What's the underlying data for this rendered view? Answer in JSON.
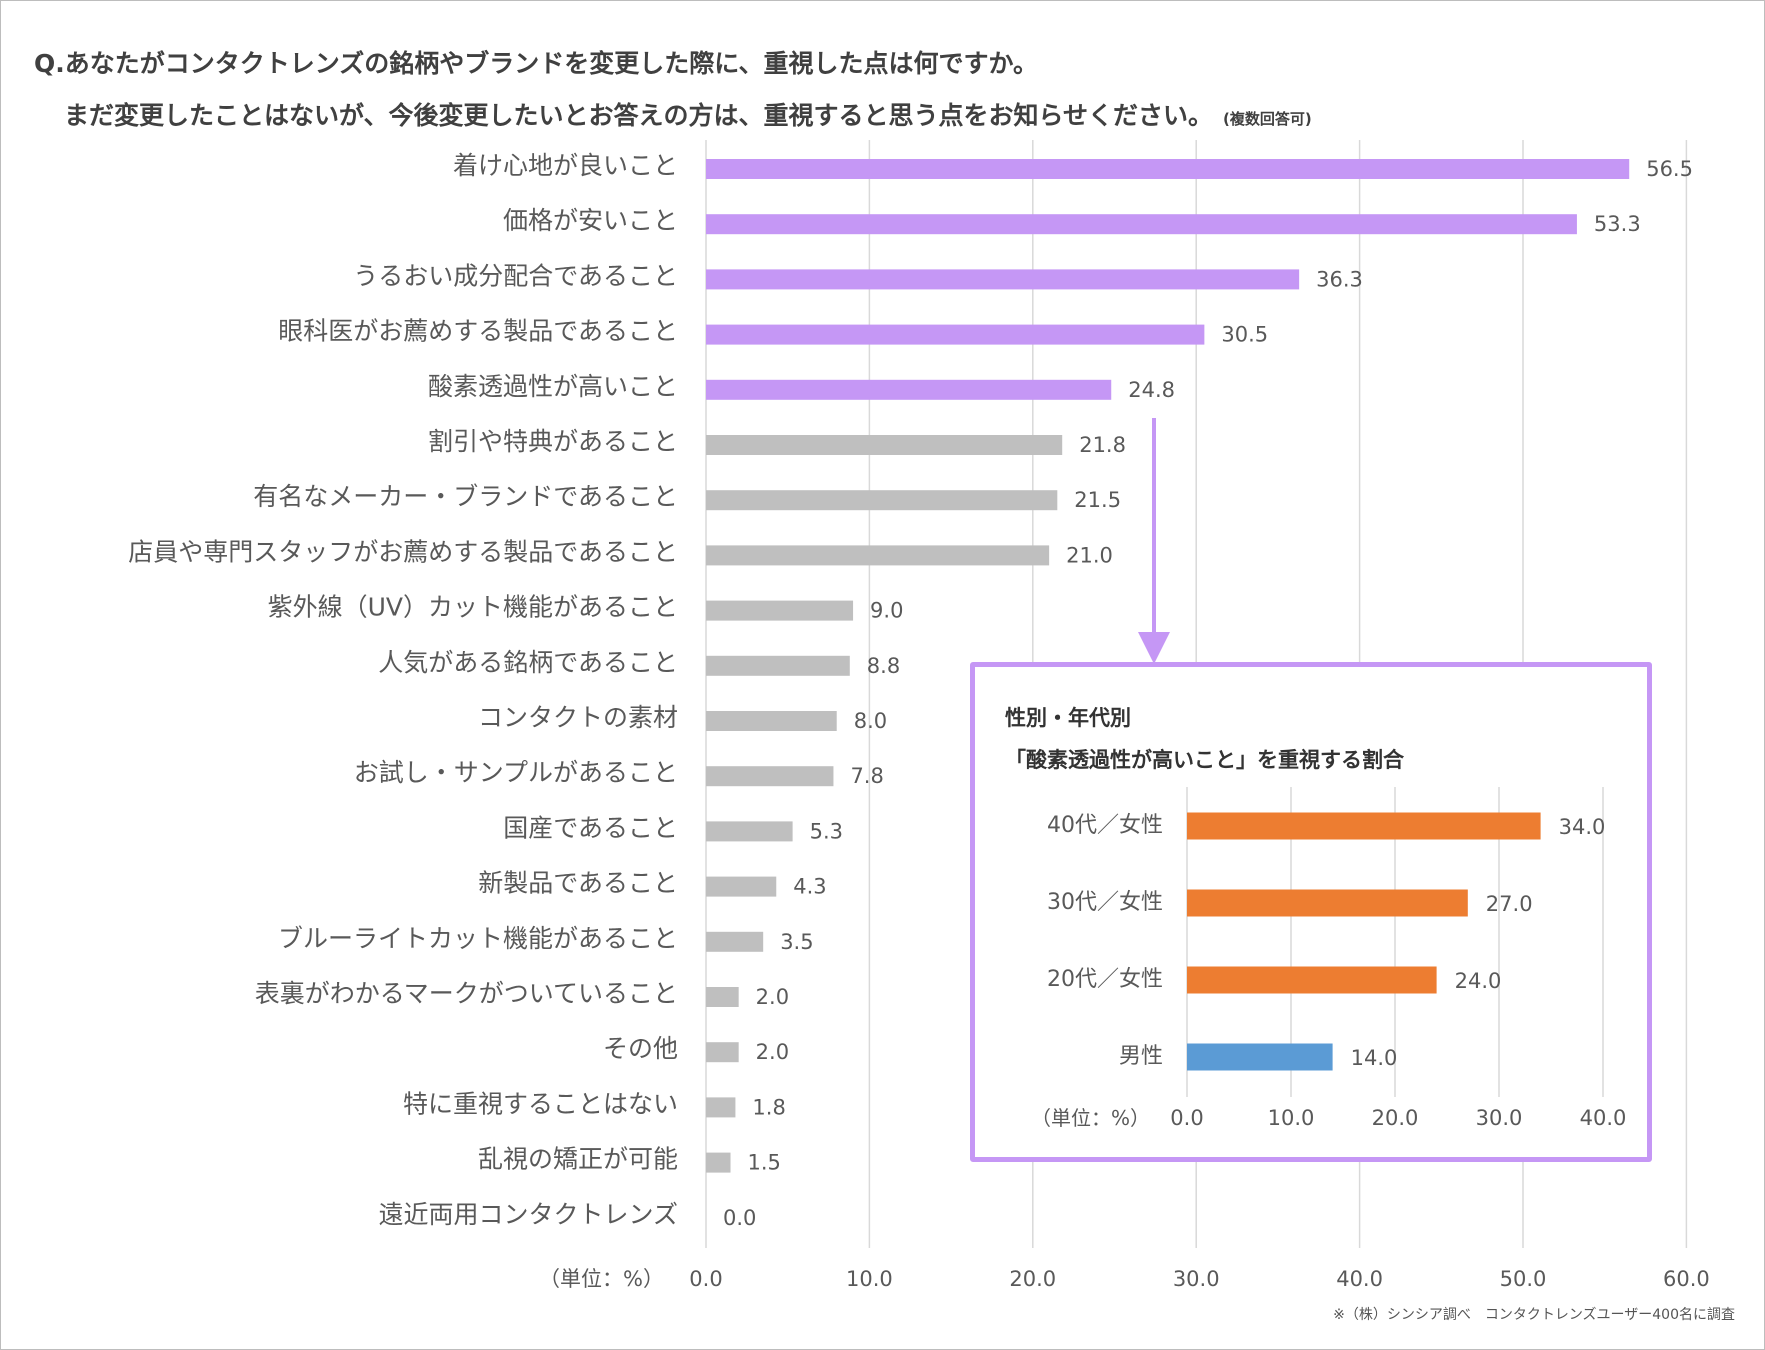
{
  "question": {
    "line1": "Q.あなたがコンタクトレンズの銘柄やブランドを変更した際に、重視した点は何ですか。",
    "line2": "まだ変更したことはないが、今後変更したいとお答えの方は、重視すると思う点をお知らせください。",
    "note": "(複数回答可)"
  },
  "source_note": "※（株）シンシア調べ　コンタクトレンズユーザー400名に調査",
  "colors": {
    "highlight": "#c597f5",
    "default": "#bfbfbf",
    "female": "#ed7d31",
    "male": "#5b9bd5"
  },
  "chart_data": [
    {
      "type": "bar",
      "orientation": "horizontal",
      "title": "Q.あなたがコンタクトレンズの銘柄やブランドを変更した際に、重視した点は何ですか。",
      "categories": [
        "着け心地が良いこと",
        "価格が安いこと",
        "うるおい成分配合であること",
        "眼科医がお薦めする製品であること",
        "酸素透過性が高いこと",
        "割引や特典があること",
        "有名なメーカー・ブランドであること",
        "店員や専門スタッフがお薦めする製品であること",
        "紫外線（UV）カット機能があること",
        "人気がある銘柄であること",
        "コンタクトの素材",
        "お試し・サンプルがあること",
        "国産であること",
        "新製品であること",
        "ブルーライトカット機能があること",
        "表裏がわかるマークがついていること",
        "その他",
        "特に重視することはない",
        "乱視の矯正が可能",
        "遠近両用コンタクトレンズ"
      ],
      "values": [
        56.5,
        53.3,
        36.3,
        30.5,
        24.8,
        21.8,
        21.5,
        21.0,
        9.0,
        8.8,
        8.0,
        7.8,
        5.3,
        4.3,
        3.5,
        2.0,
        2.0,
        1.8,
        1.5,
        0.0
      ],
      "value_labels": [
        "56.5",
        "53.3",
        "36.3",
        "30.5",
        "24.8",
        "21.8",
        "21.5",
        "21.0",
        "9.0",
        "8.8",
        "8.0",
        "7.8",
        "5.3",
        "4.3",
        "3.5",
        "2.0",
        "2.0",
        "1.8",
        "1.5",
        "0.0"
      ],
      "highlight_count": 5,
      "xlim": [
        0,
        60
      ],
      "ticks": [
        "0.0",
        "10.0",
        "20.0",
        "30.0",
        "40.0",
        "50.0",
        "60.0"
      ],
      "unit_label": "（単位：%）",
      "grid": true
    },
    {
      "type": "bar",
      "orientation": "horizontal",
      "title_line1": "性別・年代別",
      "title_line2": "「酸素透過性が高いこと」を重視する割合",
      "categories": [
        "40代／女性",
        "30代／女性",
        "20代／女性",
        "男性"
      ],
      "values": [
        34.0,
        27.0,
        24.0,
        14.0
      ],
      "value_labels": [
        "34.0",
        "27.0",
        "24.0",
        "14.0"
      ],
      "series_colors": [
        "female",
        "female",
        "female",
        "male"
      ],
      "xlim": [
        0,
        40
      ],
      "ticks": [
        "0.0",
        "10.0",
        "20.0",
        "30.0",
        "40.0"
      ],
      "unit_label": "（単位：%）",
      "grid": true
    }
  ]
}
